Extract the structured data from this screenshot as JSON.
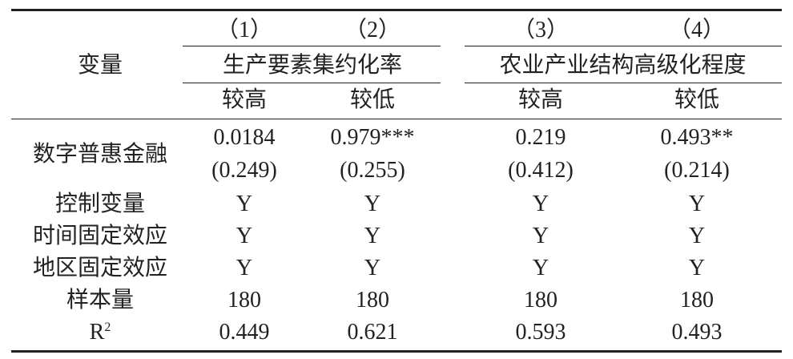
{
  "table": {
    "header": {
      "variable": "变量",
      "col_numbers": [
        "（1）",
        "（2）",
        "（3）",
        "（4）"
      ],
      "groups": [
        "生产要素集约化率",
        "农业产业结构高级化程度"
      ],
      "subgroups": [
        "较高",
        "较低",
        "较高",
        "较低"
      ]
    },
    "main_row": {
      "label": "数字普惠金融",
      "coef": [
        "0.0184",
        "0.979***",
        "0.219",
        "0.493**"
      ],
      "se": [
        "(0.249)",
        "(0.255)",
        "(0.412)",
        "(0.214)"
      ]
    },
    "rows": [
      {
        "label": "控制变量",
        "values": [
          "Y",
          "Y",
          "Y",
          "Y"
        ]
      },
      {
        "label": "时间固定效应",
        "values": [
          "Y",
          "Y",
          "Y",
          "Y"
        ]
      },
      {
        "label": "地区固定效应",
        "values": [
          "Y",
          "Y",
          "Y",
          "Y"
        ]
      },
      {
        "label": "样本量",
        "values": [
          "180",
          "180",
          "180",
          "180"
        ]
      }
    ],
    "r2_row": {
      "label": "R",
      "label_sup": "2",
      "values": [
        "0.449",
        "0.621",
        "0.593",
        "0.493"
      ]
    }
  }
}
